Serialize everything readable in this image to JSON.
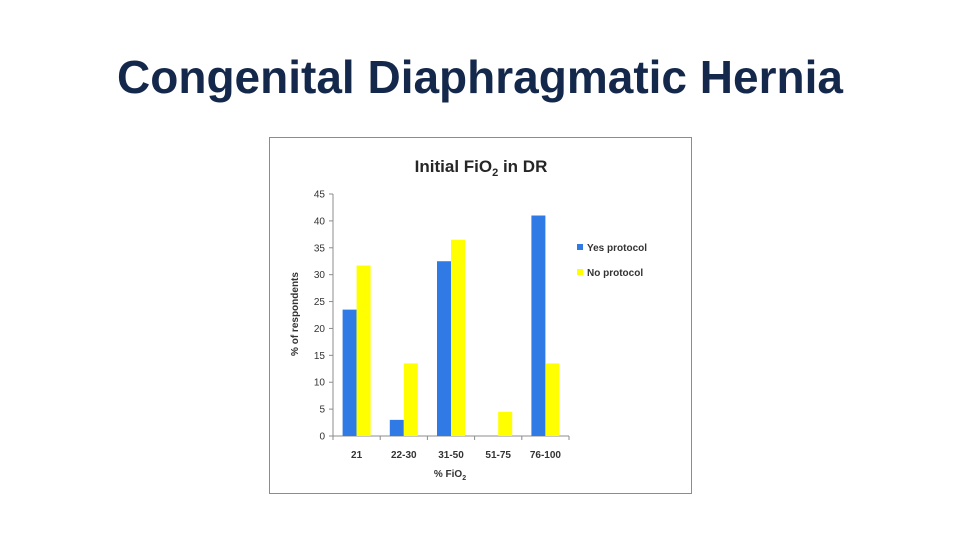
{
  "slide": {
    "title": "Congenital Diaphragmatic Hernia"
  },
  "chart_data": {
    "type": "bar",
    "title": "Initial FiO",
    "title_subscript": "2",
    "title_suffix": " in DR",
    "xlabel": "% FiO",
    "xlabel_subscript": "2",
    "ylabel": "%  of respondents",
    "categories": [
      "21",
      "22-30",
      "31-50",
      "51-75",
      "76-100"
    ],
    "ylim": [
      0,
      45
    ],
    "yticks": [
      0,
      5,
      10,
      15,
      20,
      25,
      30,
      35,
      40,
      45
    ],
    "grid": false,
    "legend_position": "right",
    "series": [
      {
        "name": "Yes protocol",
        "color": "#2f7ae5",
        "values": [
          23.5,
          3,
          32.5,
          0,
          41
        ]
      },
      {
        "name": "No protocol",
        "color": "#ffff00",
        "values": [
          31.7,
          13.5,
          36.5,
          4.5,
          13.5
        ]
      }
    ]
  }
}
